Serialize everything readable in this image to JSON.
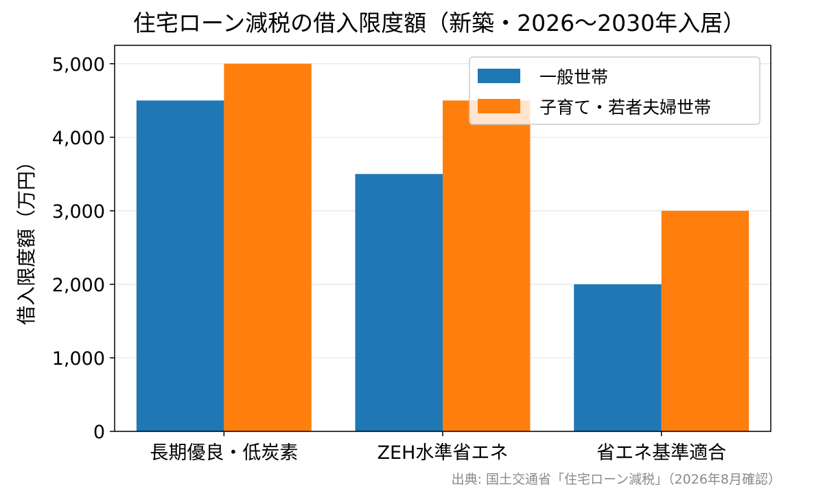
{
  "chart_data": {
    "type": "bar",
    "title": "住宅ローン減税の借入限度額（新築・2026〜2030年入居）",
    "xlabel": "",
    "ylabel": "借入限度額（万円）",
    "categories": [
      "長期優良・低炭素",
      "ZEH水準省エネ",
      "省エネ基準適合"
    ],
    "series": [
      {
        "name": "一般世帯",
        "color": "#1f77b4",
        "values": [
          4500,
          3500,
          2000
        ]
      },
      {
        "name": "子育て・若者夫婦世帯",
        "color": "#ff7f0e",
        "values": [
          5000,
          4500,
          3000
        ]
      }
    ],
    "ylim": [
      0,
      5250
    ],
    "yticks": [
      0,
      1000,
      2000,
      3000,
      4000,
      5000
    ],
    "ytick_labels": [
      "0",
      "1,000",
      "2,000",
      "3,000",
      "4,000",
      "5,000"
    ],
    "grid": "y",
    "legend_position": "upper-right",
    "source": "出典: 国土交通省「住宅ローン減税」（2026年8月確認）"
  }
}
